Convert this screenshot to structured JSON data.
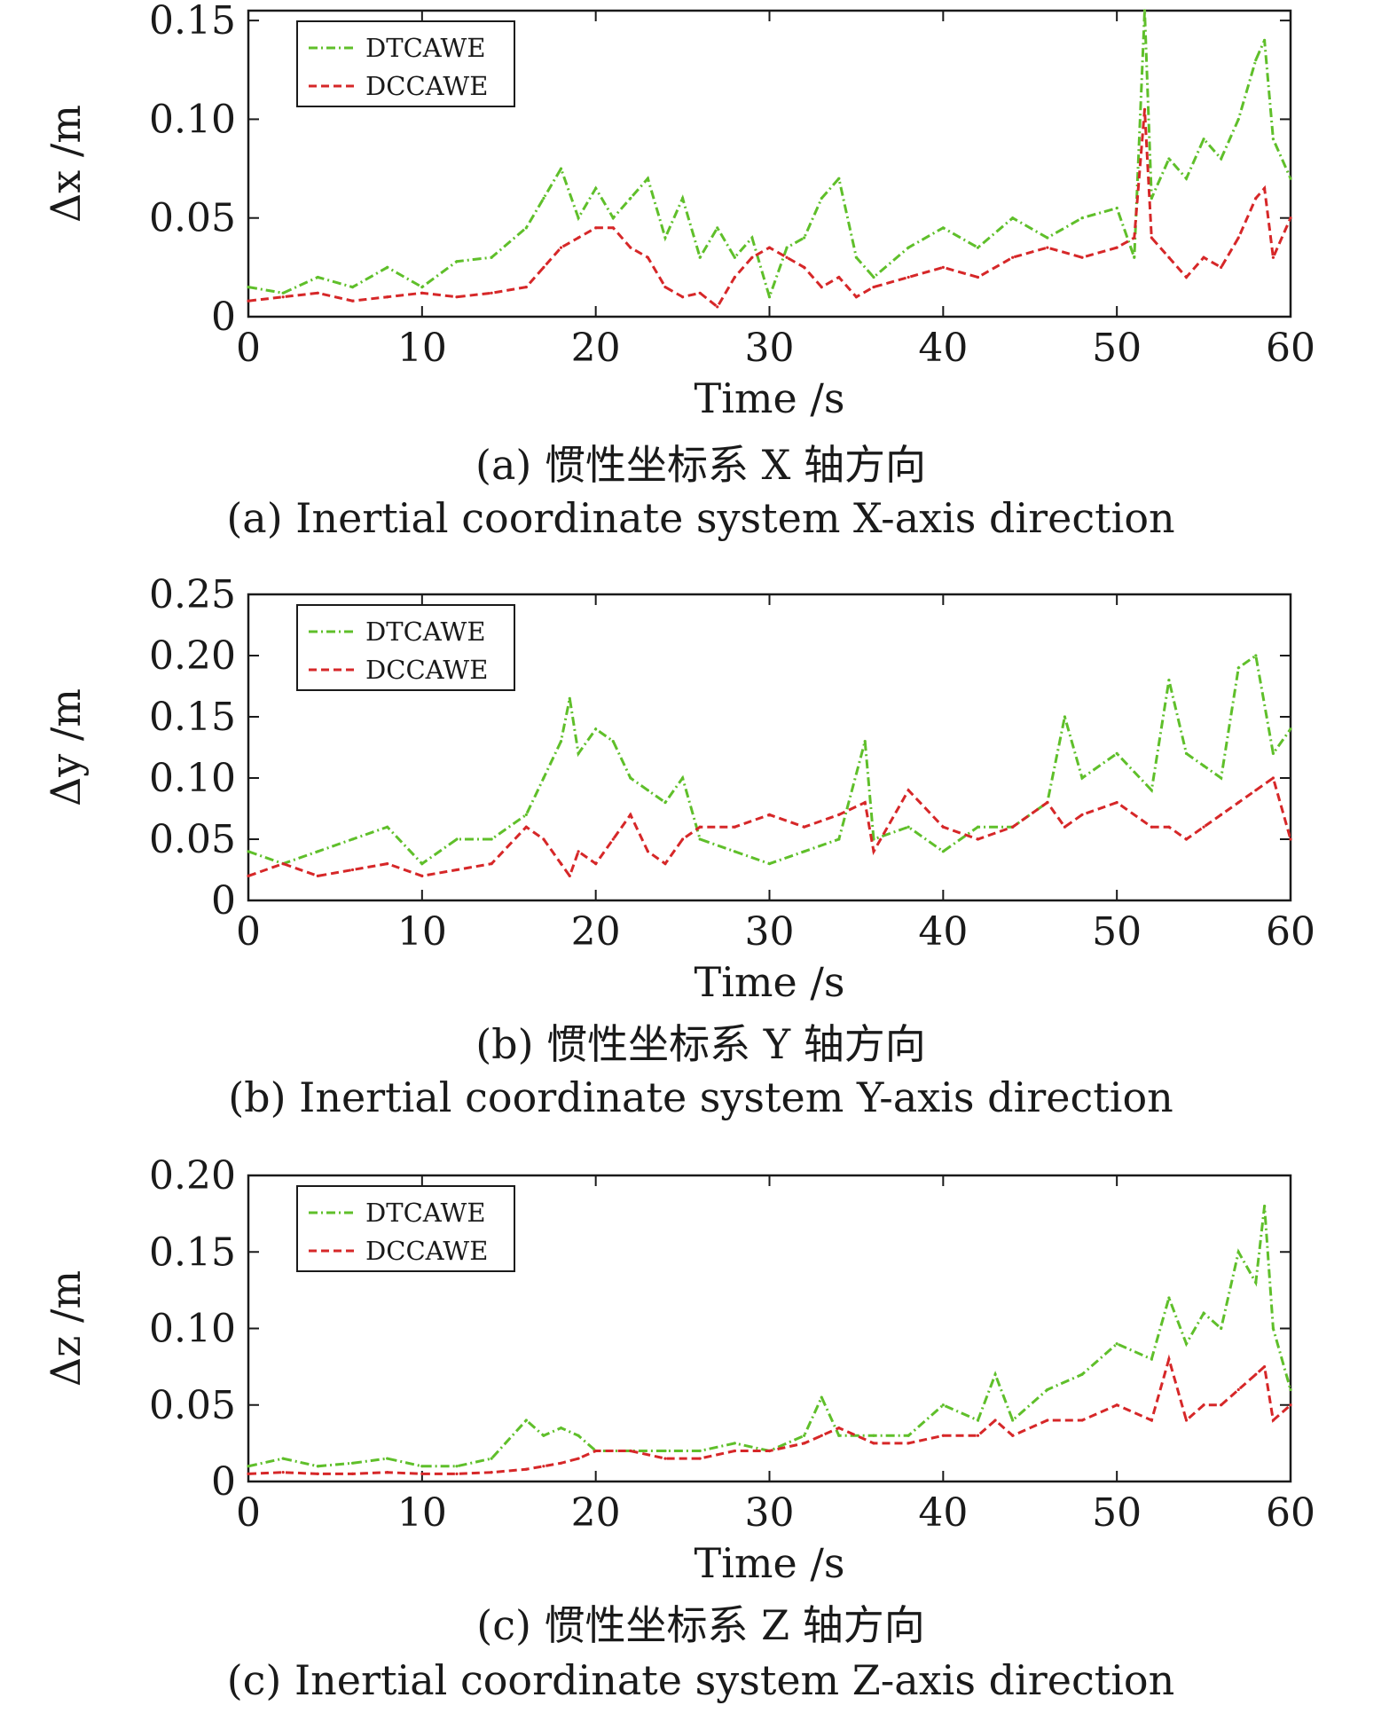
{
  "chart_data": [
    {
      "type": "line",
      "xlabel": "Time /s",
      "ylabel": "Δx /m",
      "xlim": [
        0,
        60
      ],
      "ylim": [
        0,
        0.155
      ],
      "xticks": [
        0,
        10,
        20,
        30,
        40,
        50,
        60
      ],
      "yticks": [
        0,
        0.05,
        0.1,
        0.15
      ],
      "ytick_labels": [
        "0",
        "0.05",
        "0.10",
        "0.15"
      ],
      "legend_position": "top-left",
      "caption_cn": "(a) 惯性坐标系 X 轴方向",
      "caption_en": "(a) Inertial coordinate system X-axis direction",
      "series": [
        {
          "name": "DTCAWE",
          "color": "#5fbf2a",
          "dash": "dashdot",
          "x": [
            0,
            2,
            4,
            6,
            8,
            10,
            12,
            14,
            16,
            17,
            18,
            19,
            20,
            21,
            22,
            23,
            24,
            25,
            26,
            27,
            28,
            29,
            30,
            31,
            32,
            33,
            34,
            35,
            36,
            38,
            40,
            42,
            44,
            46,
            48,
            50,
            51,
            51.6,
            52,
            53,
            54,
            55,
            56,
            57,
            58,
            58.5,
            59,
            60
          ],
          "y": [
            0.015,
            0.012,
            0.02,
            0.015,
            0.025,
            0.015,
            0.028,
            0.03,
            0.045,
            0.06,
            0.075,
            0.05,
            0.065,
            0.05,
            0.06,
            0.07,
            0.04,
            0.06,
            0.03,
            0.045,
            0.03,
            0.04,
            0.01,
            0.035,
            0.04,
            0.06,
            0.07,
            0.03,
            0.02,
            0.035,
            0.045,
            0.035,
            0.05,
            0.04,
            0.05,
            0.055,
            0.03,
            0.155,
            0.06,
            0.08,
            0.07,
            0.09,
            0.08,
            0.1,
            0.13,
            0.14,
            0.09,
            0.07
          ]
        },
        {
          "name": "DCCAWE",
          "color": "#d62728",
          "dash": "dashed",
          "x": [
            0,
            2,
            4,
            6,
            8,
            10,
            12,
            14,
            16,
            17,
            18,
            19,
            20,
            21,
            22,
            23,
            24,
            25,
            26,
            27,
            28,
            29,
            30,
            31,
            32,
            33,
            34,
            35,
            36,
            38,
            40,
            42,
            44,
            46,
            48,
            50,
            51,
            51.6,
            52,
            53,
            54,
            55,
            56,
            57,
            58,
            58.5,
            59,
            60
          ],
          "y": [
            0.008,
            0.01,
            0.012,
            0.008,
            0.01,
            0.012,
            0.01,
            0.012,
            0.015,
            0.025,
            0.035,
            0.04,
            0.045,
            0.045,
            0.035,
            0.03,
            0.015,
            0.01,
            0.012,
            0.005,
            0.02,
            0.03,
            0.035,
            0.03,
            0.025,
            0.015,
            0.02,
            0.01,
            0.015,
            0.02,
            0.025,
            0.02,
            0.03,
            0.035,
            0.03,
            0.035,
            0.04,
            0.105,
            0.04,
            0.03,
            0.02,
            0.03,
            0.025,
            0.04,
            0.06,
            0.065,
            0.03,
            0.05
          ]
        }
      ]
    },
    {
      "type": "line",
      "xlabel": "Time /s",
      "ylabel": "Δy /m",
      "xlim": [
        0,
        60
      ],
      "ylim": [
        0,
        0.25
      ],
      "xticks": [
        0,
        10,
        20,
        30,
        40,
        50,
        60
      ],
      "yticks": [
        0,
        0.05,
        0.1,
        0.15,
        0.2,
        0.25
      ],
      "ytick_labels": [
        "0",
        "0.05",
        "0.10",
        "0.15",
        "0.20",
        "0.25"
      ],
      "legend_position": "top-left",
      "caption_cn": "(b) 惯性坐标系 Y 轴方向",
      "caption_en": "(b) Inertial coordinate system Y-axis direction",
      "series": [
        {
          "name": "DTCAWE",
          "color": "#5fbf2a",
          "dash": "dashdot",
          "x": [
            0,
            2,
            4,
            6,
            8,
            10,
            12,
            14,
            16,
            17,
            18,
            18.5,
            19,
            20,
            21,
            22,
            23,
            24,
            25,
            26,
            28,
            30,
            32,
            34,
            35.5,
            36,
            38,
            40,
            42,
            44,
            46,
            47,
            48,
            50,
            52,
            53,
            54,
            55,
            56,
            57,
            58,
            59,
            60
          ],
          "y": [
            0.04,
            0.03,
            0.04,
            0.05,
            0.06,
            0.03,
            0.05,
            0.05,
            0.07,
            0.1,
            0.13,
            0.165,
            0.12,
            0.14,
            0.13,
            0.1,
            0.09,
            0.08,
            0.1,
            0.05,
            0.04,
            0.03,
            0.04,
            0.05,
            0.13,
            0.05,
            0.06,
            0.04,
            0.06,
            0.06,
            0.08,
            0.15,
            0.1,
            0.12,
            0.09,
            0.18,
            0.12,
            0.11,
            0.1,
            0.19,
            0.2,
            0.12,
            0.14
          ]
        },
        {
          "name": "DCCAWE",
          "color": "#d62728",
          "dash": "dashed",
          "x": [
            0,
            2,
            4,
            6,
            8,
            10,
            12,
            14,
            16,
            17,
            18,
            18.5,
            19,
            20,
            21,
            22,
            23,
            24,
            25,
            26,
            28,
            30,
            32,
            34,
            35.5,
            36,
            38,
            40,
            42,
            44,
            46,
            47,
            48,
            50,
            52,
            53,
            54,
            55,
            56,
            57,
            58,
            59,
            60
          ],
          "y": [
            0.02,
            0.03,
            0.02,
            0.025,
            0.03,
            0.02,
            0.025,
            0.03,
            0.06,
            0.05,
            0.03,
            0.02,
            0.04,
            0.03,
            0.05,
            0.07,
            0.04,
            0.03,
            0.05,
            0.06,
            0.06,
            0.07,
            0.06,
            0.07,
            0.08,
            0.04,
            0.09,
            0.06,
            0.05,
            0.06,
            0.08,
            0.06,
            0.07,
            0.08,
            0.06,
            0.06,
            0.05,
            0.06,
            0.07,
            0.08,
            0.09,
            0.1,
            0.05
          ]
        }
      ]
    },
    {
      "type": "line",
      "xlabel": "Time /s",
      "ylabel": "Δz /m",
      "xlim": [
        0,
        60
      ],
      "ylim": [
        0,
        0.2
      ],
      "xticks": [
        0,
        10,
        20,
        30,
        40,
        50,
        60
      ],
      "yticks": [
        0,
        0.05,
        0.1,
        0.15,
        0.2
      ],
      "ytick_labels": [
        "0",
        "0.05",
        "0.10",
        "0.15",
        "0.20"
      ],
      "legend_position": "top-left",
      "caption_cn": "(c) 惯性坐标系 Z 轴方向",
      "caption_en": "(c) Inertial coordinate system Z-axis direction",
      "series": [
        {
          "name": "DTCAWE",
          "color": "#5fbf2a",
          "dash": "dashdot",
          "x": [
            0,
            2,
            4,
            6,
            8,
            10,
            12,
            14,
            16,
            17,
            18,
            19,
            20,
            22,
            24,
            26,
            28,
            30,
            32,
            33,
            34,
            36,
            38,
            40,
            42,
            43,
            44,
            46,
            48,
            50,
            52,
            53,
            54,
            55,
            56,
            57,
            58,
            58.5,
            59,
            60
          ],
          "y": [
            0.01,
            0.015,
            0.01,
            0.012,
            0.015,
            0.01,
            0.01,
            0.015,
            0.04,
            0.03,
            0.035,
            0.03,
            0.02,
            0.02,
            0.02,
            0.02,
            0.025,
            0.02,
            0.03,
            0.055,
            0.03,
            0.03,
            0.03,
            0.05,
            0.04,
            0.07,
            0.04,
            0.06,
            0.07,
            0.09,
            0.08,
            0.12,
            0.09,
            0.11,
            0.1,
            0.15,
            0.13,
            0.18,
            0.1,
            0.06
          ]
        },
        {
          "name": "DCCAWE",
          "color": "#d62728",
          "dash": "dashed",
          "x": [
            0,
            2,
            4,
            6,
            8,
            10,
            12,
            14,
            16,
            17,
            18,
            19,
            20,
            22,
            24,
            26,
            28,
            30,
            32,
            33,
            34,
            36,
            38,
            40,
            42,
            43,
            44,
            46,
            48,
            50,
            52,
            53,
            54,
            55,
            56,
            57,
            58,
            58.5,
            59,
            60
          ],
          "y": [
            0.005,
            0.006,
            0.005,
            0.005,
            0.006,
            0.005,
            0.005,
            0.006,
            0.008,
            0.01,
            0.012,
            0.015,
            0.02,
            0.02,
            0.015,
            0.015,
            0.02,
            0.02,
            0.025,
            0.03,
            0.035,
            0.025,
            0.025,
            0.03,
            0.03,
            0.04,
            0.03,
            0.04,
            0.04,
            0.05,
            0.04,
            0.08,
            0.04,
            0.05,
            0.05,
            0.06,
            0.07,
            0.075,
            0.04,
            0.05
          ]
        }
      ]
    }
  ]
}
